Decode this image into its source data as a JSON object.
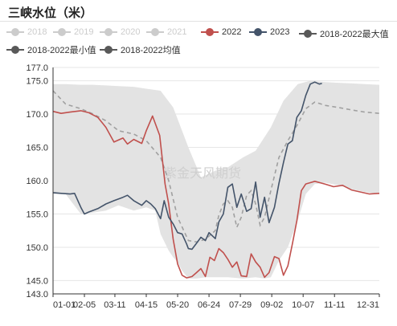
{
  "title": "三峡水位（米）",
  "watermark": "紫金天风期货",
  "legend": [
    {
      "label": "2018",
      "color": "#cccccc",
      "active": false
    },
    {
      "label": "2019",
      "color": "#cccccc",
      "active": false
    },
    {
      "label": "2020",
      "color": "#cccccc",
      "active": false
    },
    {
      "label": "2021",
      "color": "#cccccc",
      "active": false
    },
    {
      "label": "2022",
      "color": "#c0504d",
      "active": true
    },
    {
      "label": "2023",
      "color": "#44546a",
      "active": true
    },
    {
      "label": "2018-2022最大值",
      "color": "#595959",
      "active": true
    },
    {
      "label": "2018-2022最小值",
      "color": "#595959",
      "active": true
    },
    {
      "label": "2018-2022均值",
      "color": "#595959",
      "active": true
    }
  ],
  "chart_data": {
    "type": "line",
    "title": "三峡水位（米）",
    "xlabel": "",
    "ylabel": "",
    "ylim": [
      143.0,
      177.0
    ],
    "yticks": [
      "143.0",
      "145.0",
      "150.0",
      "155.0",
      "160.0",
      "165.0",
      "170.0",
      "175.0",
      "177.0"
    ],
    "xlim": [
      "01-01",
      "12-31"
    ],
    "xticks": [
      "01-01",
      "02-05",
      "03-11",
      "04-15",
      "05-20",
      "06-24",
      "07-29",
      "09-02",
      "10-07",
      "11-11",
      "12-31"
    ],
    "grid": "horizontal",
    "legend_position": "top",
    "series": [
      {
        "name": "2022",
        "color": "#c0504d",
        "style": "solid",
        "x": [
          "01-01",
          "01-10",
          "01-20",
          "02-01",
          "02-10",
          "02-20",
          "03-01",
          "03-10",
          "03-20",
          "03-25",
          "04-01",
          "04-10",
          "04-15",
          "04-22",
          "04-30",
          "05-06",
          "05-10",
          "05-15",
          "05-20",
          "05-25",
          "05-30",
          "06-05",
          "06-10",
          "06-15",
          "06-20",
          "06-25",
          "06-30",
          "07-05",
          "07-10",
          "07-15",
          "07-20",
          "07-25",
          "07-30",
          "08-05",
          "08-10",
          "08-15",
          "08-20",
          "08-25",
          "08-30",
          "09-05",
          "09-10",
          "09-15",
          "09-20",
          "09-25",
          "09-30",
          "10-05",
          "10-10",
          "10-15",
          "10-20",
          "10-31",
          "11-10",
          "11-20",
          "11-30",
          "12-10",
          "12-20",
          "12-31"
        ],
        "values": [
          170.4,
          170.1,
          170.3,
          170.5,
          170.2,
          169.5,
          168.0,
          165.8,
          166.4,
          165.5,
          166.2,
          165.6,
          167.5,
          169.7,
          166.8,
          159.5,
          156.5,
          151.2,
          147.5,
          145.8,
          145.4,
          145.6,
          146.2,
          146.8,
          145.6,
          148.5,
          148.0,
          149.8,
          149.2,
          148.2,
          147.0,
          147.8,
          145.7,
          145.6,
          149.0,
          147.8,
          147.0,
          145.5,
          146.2,
          148.6,
          148.3,
          145.8,
          147.2,
          150.5,
          154.0,
          158.5,
          159.5,
          159.7,
          159.9,
          159.5,
          159.1,
          159.3,
          158.6,
          158.3,
          158.0,
          158.1
        ]
      },
      {
        "name": "2023",
        "color": "#44546a",
        "style": "solid",
        "x": [
          "01-01",
          "01-10",
          "01-20",
          "01-25",
          "02-01",
          "02-05",
          "02-10",
          "02-20",
          "03-01",
          "03-10",
          "03-20",
          "03-25",
          "04-01",
          "04-10",
          "04-15",
          "04-20",
          "04-25",
          "05-01",
          "05-05",
          "05-10",
          "05-15",
          "05-20",
          "05-25",
          "05-30",
          "06-01",
          "06-05",
          "06-10",
          "06-15",
          "06-20",
          "06-24",
          "07-01",
          "07-05",
          "07-10",
          "07-15",
          "07-20",
          "07-25",
          "07-30",
          "08-05",
          "08-10",
          "08-15",
          "08-20",
          "08-25",
          "08-30",
          "09-05",
          "09-10",
          "09-15",
          "09-20",
          "09-25",
          "09-30",
          "10-05",
          "10-10",
          "10-15",
          "10-20",
          "10-25",
          "10-28"
        ],
        "values": [
          158.2,
          158.1,
          158.0,
          158.1,
          156.0,
          155.0,
          155.3,
          155.8,
          156.5,
          157.0,
          157.5,
          157.8,
          157.0,
          156.3,
          157.0,
          156.5,
          155.8,
          154.3,
          157.0,
          154.5,
          153.5,
          152.2,
          152.0,
          150.5,
          149.8,
          149.7,
          150.6,
          151.5,
          151.0,
          152.2,
          151.3,
          153.8,
          155.0,
          159.0,
          159.5,
          156.0,
          158.0,
          155.4,
          155.8,
          159.8,
          154.5,
          157.5,
          153.7,
          156.0,
          159.6,
          162.7,
          165.5,
          166.0,
          169.5,
          170.5,
          172.8,
          174.5,
          174.8,
          174.5,
          174.6
        ]
      },
      {
        "name": "2018-2022最大值",
        "color": "#595959",
        "style": "band-upper",
        "x": [
          "01-01",
          "01-15",
          "02-01",
          "02-15",
          "03-01",
          "03-15",
          "04-01",
          "04-15",
          "05-01",
          "05-15",
          "06-01",
          "06-15",
          "07-01",
          "07-15",
          "08-01",
          "08-15",
          "09-01",
          "09-15",
          "10-01",
          "10-15",
          "11-01",
          "11-15",
          "12-01",
          "12-15",
          "12-31"
        ],
        "values": [
          174.5,
          174.5,
          174.4,
          174.4,
          174.3,
          174.2,
          174.1,
          173.8,
          173.5,
          171.0,
          165.0,
          160.5,
          161.5,
          162.0,
          163.5,
          164.5,
          168.0,
          172.0,
          174.5,
          175.0,
          174.8,
          174.7,
          174.6,
          174.5,
          174.4
        ]
      },
      {
        "name": "2018-2022最小值",
        "color": "#595959",
        "style": "band-lower",
        "x": [
          "01-01",
          "01-15",
          "02-01",
          "02-15",
          "03-01",
          "03-15",
          "04-01",
          "04-15",
          "04-25",
          "05-01",
          "05-10",
          "05-15",
          "05-20",
          "05-25",
          "06-01",
          "06-10",
          "06-20",
          "07-01",
          "07-15",
          "08-01",
          "08-15",
          "08-25",
          "09-01",
          "09-10",
          "09-20",
          "10-01",
          "10-10",
          "10-20",
          "11-01",
          "11-15",
          "12-01",
          "12-15",
          "12-31"
        ],
        "values": [
          158.0,
          158.0,
          155.0,
          155.2,
          155.5,
          156.3,
          155.5,
          156.0,
          155.5,
          152.0,
          149.5,
          148.5,
          147.8,
          146.5,
          145.3,
          145.3,
          145.5,
          145.5,
          145.5,
          145.3,
          145.5,
          145.3,
          145.5,
          148.0,
          150.0,
          154.0,
          158.0,
          159.5,
          159.7,
          159.3,
          158.7,
          158.3,
          158.0
        ]
      },
      {
        "name": "2018-2022均值",
        "color": "#a0a0a0",
        "style": "dashed",
        "x": [
          "01-01",
          "01-15",
          "02-01",
          "02-15",
          "03-01",
          "03-15",
          "04-01",
          "04-15",
          "05-01",
          "05-10",
          "05-20",
          "06-01",
          "06-10",
          "06-20",
          "07-01",
          "07-05",
          "07-10",
          "07-15",
          "07-20",
          "07-25",
          "07-30",
          "08-05",
          "08-10",
          "08-15",
          "08-20",
          "08-25",
          "09-01",
          "09-10",
          "09-20",
          "10-01",
          "10-10",
          "10-20",
          "11-01",
          "11-15",
          "12-01",
          "12-15",
          "12-31"
        ],
        "values": [
          173.5,
          171.5,
          170.8,
          170.0,
          169.0,
          167.5,
          167.0,
          166.0,
          163.5,
          160.0,
          154.5,
          151.0,
          150.8,
          151.2,
          152.5,
          154.8,
          156.5,
          157.0,
          156.0,
          153.0,
          154.5,
          157.8,
          158.5,
          156.5,
          153.3,
          154.5,
          158.5,
          163.5,
          166.0,
          168.5,
          170.8,
          171.8,
          171.3,
          171.0,
          170.6,
          170.3,
          170.1
        ]
      }
    ]
  }
}
